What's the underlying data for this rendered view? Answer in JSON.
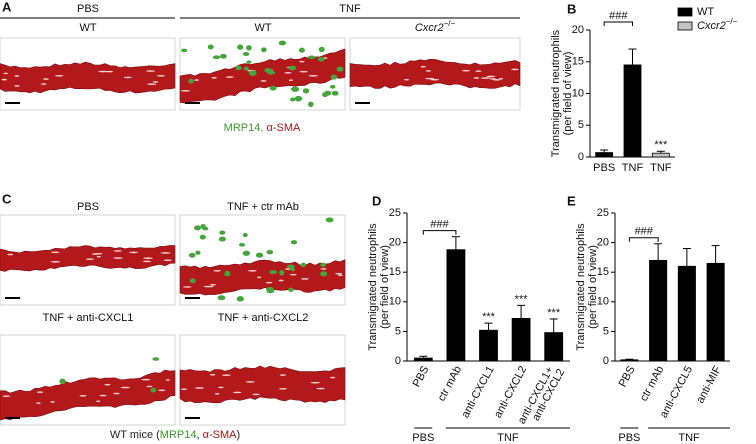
{
  "image_panels": [
    {
      "panel": "A",
      "group_labels": [
        "PBS",
        "TNF"
      ],
      "image_labels": [
        "WT",
        "WT",
        {
          "text": "Cxcr2",
          "superscript": "−/−"
        }
      ],
      "caption": [
        {
          "text": "MRP14, ",
          "color": "#3a9a2a"
        },
        {
          "text": "α-SMA",
          "color": "#a01818"
        }
      ]
    },
    {
      "panel": "C",
      "image_labels": [
        "PBS",
        "TNF + ctr mAb",
        "TNF + anti-CXCL1",
        "TNF + anti-CXCL2"
      ],
      "caption": [
        {
          "text": "WT mice (",
          "color": "#222222"
        },
        {
          "text": "MRP14",
          "color": "#3a9a2a"
        },
        {
          "text": ", ",
          "color": "#222222"
        },
        {
          "text": "α-SMA",
          "color": "#a01818"
        },
        {
          "text": ")",
          "color": "#222222"
        }
      ]
    }
  ],
  "chart_data": [
    {
      "type": "bar",
      "panel": "B",
      "y_label": [
        "Transmigrated neutrophils",
        "(per field of view)"
      ],
      "categories": [
        "PBS",
        "TNF",
        "TNF"
      ],
      "series": [
        {
          "name": "WT",
          "color": "#000000",
          "values": [
            0.7,
            14.5,
            null
          ],
          "errors": [
            0.4,
            2.5,
            null
          ]
        },
        {
          "name": {
            "text": "Cxcr2",
            "superscript": "−/−"
          },
          "color": "#c4c4c4",
          "values": [
            null,
            null,
            0.6
          ],
          "errors": [
            null,
            null,
            0.3
          ]
        }
      ],
      "bracket": "###",
      "stars": [
        null,
        null,
        "***"
      ],
      "ylim": [
        0,
        20
      ],
      "yticks": [
        0,
        5,
        10,
        15,
        20
      ]
    },
    {
      "type": "bar",
      "panel": "D",
      "y_label": [
        "Transmigrated neutrophils",
        "(per field of view)"
      ],
      "categories": [
        "PBS",
        "ctr mAb",
        "anti-CXCL1",
        "anti-CXCL2",
        "anti-CXCL1+ anti-CXCL2"
      ],
      "series": [
        {
          "color": "#000000",
          "values": [
            0.5,
            18.8,
            5.2,
            7.2,
            4.8
          ],
          "errors": [
            0.3,
            2.2,
            1.2,
            2.2,
            2.3
          ]
        }
      ],
      "bracket": "###",
      "stars": [
        null,
        null,
        "***",
        "***",
        "***"
      ],
      "group_labels": [
        "PBS",
        "TNF"
      ],
      "ylim": [
        0,
        25
      ],
      "yticks": [
        0,
        5,
        10,
        15,
        20,
        25
      ]
    },
    {
      "type": "bar",
      "panel": "E",
      "y_label": [
        "Transmigrated neutrophils",
        "(per field of view)"
      ],
      "categories": [
        "PBS",
        "ctr mAb",
        "anti-CXCL5",
        "anti-MIF"
      ],
      "series": [
        {
          "color": "#000000",
          "values": [
            0.2,
            17.0,
            16.0,
            16.5
          ],
          "errors": [
            0.1,
            2.8,
            3.0,
            3.0
          ]
        }
      ],
      "bracket": "###",
      "group_labels": [
        "PBS",
        "TNF"
      ],
      "ylim": [
        0,
        25
      ],
      "yticks": [
        0,
        5,
        10,
        15,
        20,
        25
      ]
    }
  ]
}
